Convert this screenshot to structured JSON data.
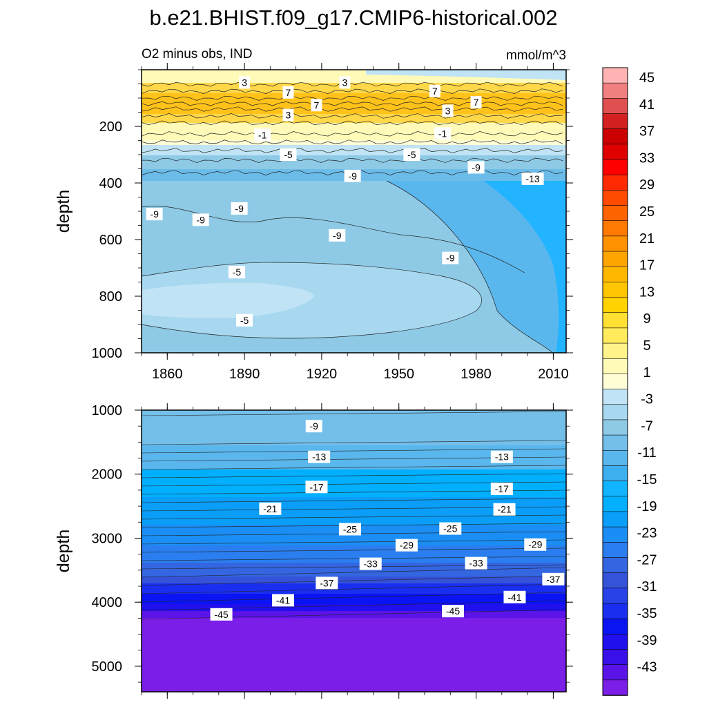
{
  "chart_data": {
    "type": "contour",
    "title": "b.e21.BHIST.f09_g17.CMIP6-historical.002",
    "variable_label": "O2 minus obs, IND",
    "units": "mmol/m^3",
    "panels": [
      {
        "name": "upper",
        "ylabel": "depth",
        "xlim": [
          1850,
          2015
        ],
        "ylim": [
          0,
          1000
        ],
        "x_ticks": [
          1860,
          1890,
          1920,
          1950,
          1980,
          2010
        ],
        "y_ticks": [
          200,
          400,
          600,
          800,
          1000
        ],
        "contour_labels": [
          {
            "text": "3",
            "x": 1890,
            "depth": 45
          },
          {
            "text": "7",
            "x": 1907,
            "depth": 80
          },
          {
            "text": "3",
            "x": 1929,
            "depth": 45
          },
          {
            "text": "7",
            "x": 1964,
            "depth": 75
          },
          {
            "text": "7",
            "x": 1918,
            "depth": 125
          },
          {
            "text": "3",
            "x": 1907,
            "depth": 160
          },
          {
            "text": "3",
            "x": 1969,
            "depth": 145
          },
          {
            "text": "7",
            "x": 1980,
            "depth": 115
          },
          {
            "text": "-1",
            "x": 1897,
            "depth": 230
          },
          {
            "text": "-1",
            "x": 1967,
            "depth": 225
          },
          {
            "text": "-5",
            "x": 1907,
            "depth": 300
          },
          {
            "text": "-5",
            "x": 1955,
            "depth": 300
          },
          {
            "text": "-9",
            "x": 1932,
            "depth": 375
          },
          {
            "text": "-9",
            "x": 1980,
            "depth": 345
          },
          {
            "text": "-13",
            "x": 2002,
            "depth": 385
          },
          {
            "text": "-9",
            "x": 1855,
            "depth": 510
          },
          {
            "text": "-9",
            "x": 1873,
            "depth": 530
          },
          {
            "text": "-9",
            "x": 1888,
            "depth": 490
          },
          {
            "text": "-9",
            "x": 1926,
            "depth": 585
          },
          {
            "text": "-9",
            "x": 1970,
            "depth": 665
          },
          {
            "text": "-5",
            "x": 1887,
            "depth": 715
          },
          {
            "text": "-5",
            "x": 1890,
            "depth": 885
          }
        ]
      },
      {
        "name": "lower",
        "ylabel": "depth",
        "xlim": [
          1850,
          2015
        ],
        "ylim": [
          1000,
          5400
        ],
        "y_ticks": [
          1000,
          2000,
          3000,
          4000,
          5000
        ],
        "contour_labels": [
          {
            "text": "-9",
            "x": 1917,
            "depth": 1250
          },
          {
            "text": "-13",
            "x": 1919,
            "depth": 1730
          },
          {
            "text": "-13",
            "x": 1990,
            "depth": 1730
          },
          {
            "text": "-17",
            "x": 1918,
            "depth": 2200
          },
          {
            "text": "-17",
            "x": 1990,
            "depth": 2230
          },
          {
            "text": "-21",
            "x": 1900,
            "depth": 2540
          },
          {
            "text": "-21",
            "x": 1991,
            "depth": 2550
          },
          {
            "text": "-25",
            "x": 1931,
            "depth": 2860
          },
          {
            "text": "-25",
            "x": 1970,
            "depth": 2850
          },
          {
            "text": "-29",
            "x": 1953,
            "depth": 3110
          },
          {
            "text": "-29",
            "x": 2003,
            "depth": 3100
          },
          {
            "text": "-33",
            "x": 1939,
            "depth": 3400
          },
          {
            "text": "-33",
            "x": 1980,
            "depth": 3390
          },
          {
            "text": "-37",
            "x": 1922,
            "depth": 3700
          },
          {
            "text": "-37",
            "x": 2010,
            "depth": 3640
          },
          {
            "text": "-41",
            "x": 1905,
            "depth": 3970
          },
          {
            "text": "-41",
            "x": 1995,
            "depth": 3920
          },
          {
            "text": "-45",
            "x": 1881,
            "depth": 4190
          },
          {
            "text": "-45",
            "x": 1971,
            "depth": 4140
          }
        ]
      }
    ],
    "colorbar": {
      "labels": [
        "45",
        "41",
        "37",
        "33",
        "29",
        "25",
        "21",
        "17",
        "13",
        "9",
        "5",
        "1",
        "-3",
        "-7",
        "-11",
        "-15",
        "-19",
        "-23",
        "-27",
        "-31",
        "-35",
        "-39",
        "-43"
      ],
      "colors": [
        "#ffb3b3",
        "#f08080",
        "#e05050",
        "#d42020",
        "#cc0000",
        "#e00000",
        "#ff0000",
        "#ff2a00",
        "#ff4a00",
        "#ff6200",
        "#ff7a00",
        "#ff9200",
        "#ffa500",
        "#ffb700",
        "#ffc500",
        "#ffd200",
        "#ffe033",
        "#ffeb5c",
        "#fff38a",
        "#fffab8",
        "#fffdd6",
        "#c0e4f5",
        "#a8d8f0",
        "#8ecae6",
        "#74bfea",
        "#5ab7ed",
        "#3dafee",
        "#10b4ff",
        "#00b0ff",
        "#0a9ef8",
        "#1a8ef5",
        "#2a7ef0",
        "#3466e2",
        "#3553d8",
        "#2842e8",
        "#1a2ef0",
        "#0a14f2",
        "#2010ee",
        "#3a10e8",
        "#5a14e8",
        "#7a1ee8"
      ]
    }
  }
}
